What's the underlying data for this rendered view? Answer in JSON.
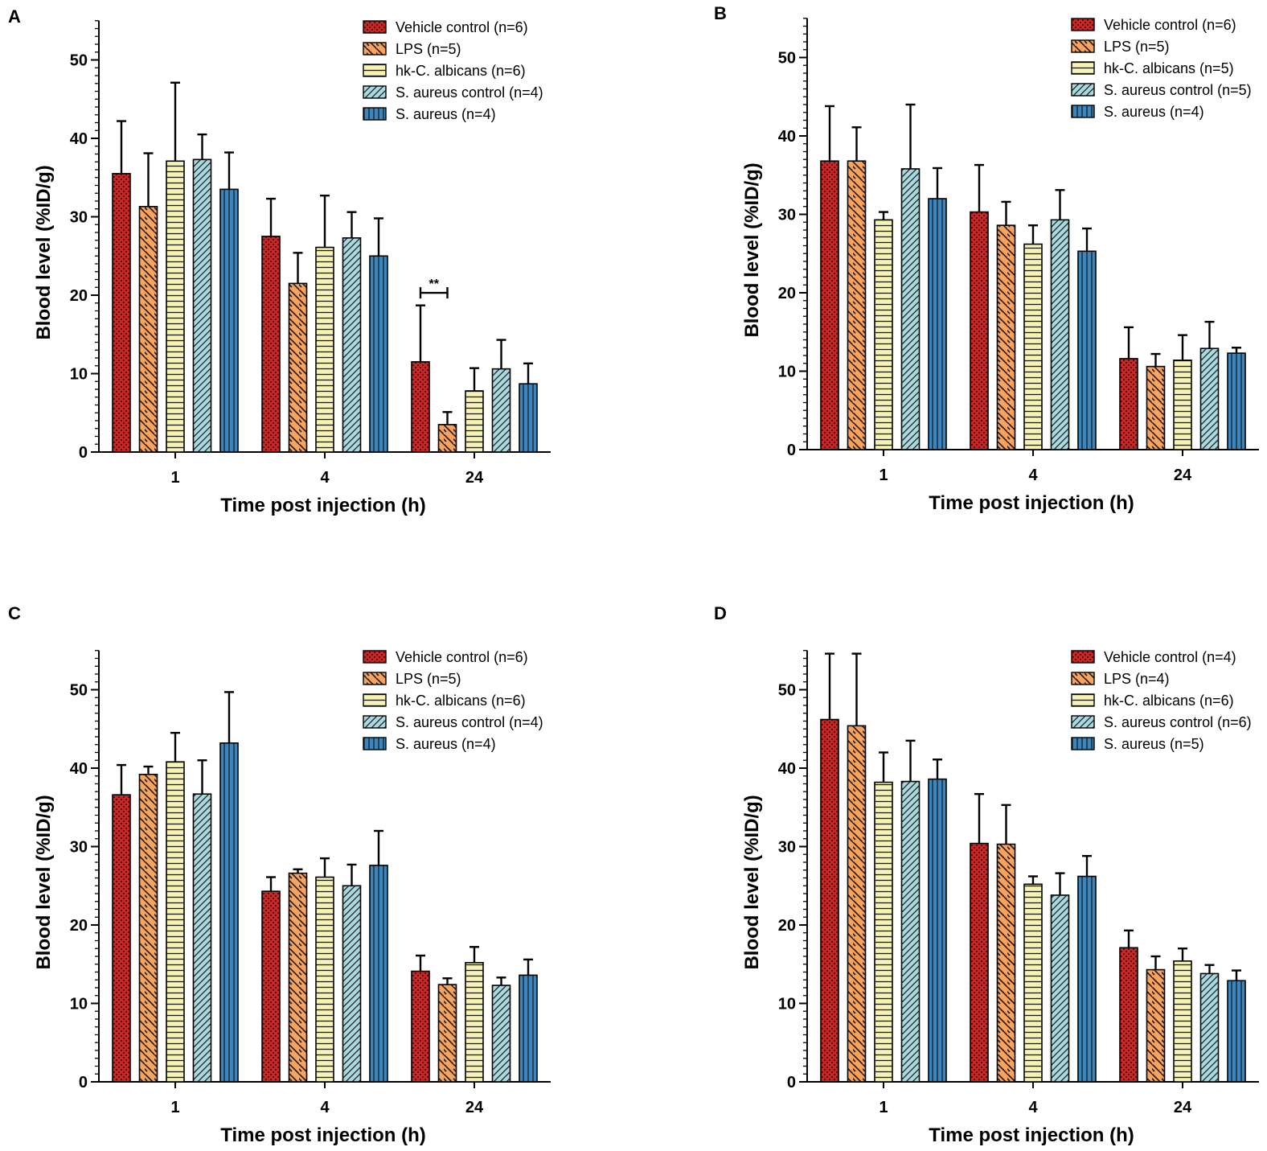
{
  "colors": {
    "vehicle": "#c62828",
    "lps": "#f7a35c",
    "hk": "#f6f3b5",
    "sa_control": "#a9d8df",
    "sa": "#3a86c0",
    "pattern_dark": "#1a1a1a"
  },
  "chart_data": [
    {
      "panel": "A",
      "type": "bar",
      "xlabel": "Time post injection (h)",
      "ylabel": "Blood level (%ID/g)",
      "ylim": [
        0,
        55
      ],
      "yticks": [
        "0",
        "10",
        "20",
        "30",
        "40",
        "50"
      ],
      "categories": [
        "1",
        "4",
        "24"
      ],
      "series": [
        {
          "name": "Vehicle control (n=6)",
          "values": [
            35.5,
            27.5,
            11.5
          ],
          "errors": [
            6.7,
            4.8,
            7.2
          ]
        },
        {
          "name": "LPS (n=5)",
          "values": [
            31.3,
            21.5,
            3.5
          ],
          "errors": [
            6.8,
            3.9,
            1.6
          ]
        },
        {
          "name": "hk-C. albicans (n=6)",
          "values": [
            37.1,
            26.1,
            7.8
          ],
          "errors": [
            10.0,
            6.6,
            2.9
          ]
        },
        {
          "name": "S. aureus control (n=4)",
          "values": [
            37.3,
            27.3,
            10.6
          ],
          "errors": [
            3.2,
            3.3,
            3.7
          ]
        },
        {
          "name": "S. aureus (n=4)",
          "values": [
            33.5,
            25.0,
            8.7
          ],
          "errors": [
            4.7,
            4.8,
            2.6
          ]
        }
      ],
      "significance": {
        "label": "**",
        "category": "24",
        "from_series": 0,
        "to_series": 1,
        "y": 20.3
      }
    },
    {
      "panel": "B",
      "type": "bar",
      "xlabel": "Time post injection (h)",
      "ylabel": "Blood level (%ID/g)",
      "ylim": [
        0,
        55
      ],
      "yticks": [
        "0",
        "10",
        "20",
        "30",
        "40",
        "50"
      ],
      "categories": [
        "1",
        "4",
        "24"
      ],
      "series": [
        {
          "name": "Vehicle control (n=6)",
          "values": [
            36.8,
            30.3,
            11.6
          ],
          "errors": [
            7.0,
            6.0,
            4.0
          ]
        },
        {
          "name": "LPS (n=5)",
          "values": [
            36.8,
            28.6,
            10.6
          ],
          "errors": [
            4.3,
            3.0,
            1.6
          ]
        },
        {
          "name": "hk-C. albicans (n=5)",
          "values": [
            29.3,
            26.2,
            11.4
          ],
          "errors": [
            1.0,
            2.4,
            3.2
          ]
        },
        {
          "name": "S. aureus control (n=5)",
          "values": [
            35.8,
            29.3,
            12.9
          ],
          "errors": [
            8.2,
            3.8,
            3.4
          ]
        },
        {
          "name": "S. aureus (n=4)",
          "values": [
            32.0,
            25.3,
            12.3
          ],
          "errors": [
            3.9,
            2.9,
            0.7
          ]
        }
      ]
    },
    {
      "panel": "C",
      "type": "bar",
      "xlabel": "Time post injection (h)",
      "ylabel": "Blood level (%ID/g)",
      "ylim": [
        0,
        55
      ],
      "yticks": [
        "0",
        "10",
        "20",
        "30",
        "40",
        "50"
      ],
      "categories": [
        "1",
        "4",
        "24"
      ],
      "series": [
        {
          "name": "Vehicle control (n=6)",
          "values": [
            36.6,
            24.3,
            14.1
          ],
          "errors": [
            3.8,
            1.8,
            2.0
          ]
        },
        {
          "name": "LPS (n=5)",
          "values": [
            39.2,
            26.6,
            12.4
          ],
          "errors": [
            1.0,
            0.5,
            0.8
          ]
        },
        {
          "name": "hk-C. albicans (n=6)",
          "values": [
            40.8,
            26.1,
            15.2
          ],
          "errors": [
            3.7,
            2.4,
            2.0
          ]
        },
        {
          "name": "S. aureus control (n=4)",
          "values": [
            36.7,
            25.0,
            12.3
          ],
          "errors": [
            4.3,
            2.7,
            1.0
          ]
        },
        {
          "name": "S. aureus (n=4)",
          "values": [
            43.2,
            27.6,
            13.6
          ],
          "errors": [
            6.5,
            4.4,
            2.0
          ]
        }
      ]
    },
    {
      "panel": "D",
      "type": "bar",
      "xlabel": "Time post injection (h)",
      "ylabel": "Blood level (%ID/g)",
      "ylim": [
        0,
        55
      ],
      "yticks": [
        "0",
        "10",
        "20",
        "30",
        "40",
        "50"
      ],
      "categories": [
        "1",
        "4",
        "24"
      ],
      "series": [
        {
          "name": "Vehicle control (n=4)",
          "values": [
            46.2,
            30.4,
            17.1
          ],
          "errors": [
            8.4,
            6.3,
            2.2
          ]
        },
        {
          "name": "LPS (n=4)",
          "values": [
            45.4,
            30.3,
            14.3
          ],
          "errors": [
            9.2,
            5.0,
            1.7
          ]
        },
        {
          "name": "hk-C. albicans (n=6)",
          "values": [
            38.2,
            25.2,
            15.4
          ],
          "errors": [
            3.8,
            1.0,
            1.6
          ]
        },
        {
          "name": "S. aureus control (n=6)",
          "values": [
            38.3,
            23.8,
            13.8
          ],
          "errors": [
            5.2,
            2.8,
            1.1
          ]
        },
        {
          "name": "S. aureus (n=5)",
          "values": [
            38.6,
            26.2,
            12.9
          ],
          "errors": [
            2.5,
            2.6,
            1.3
          ]
        }
      ]
    }
  ]
}
